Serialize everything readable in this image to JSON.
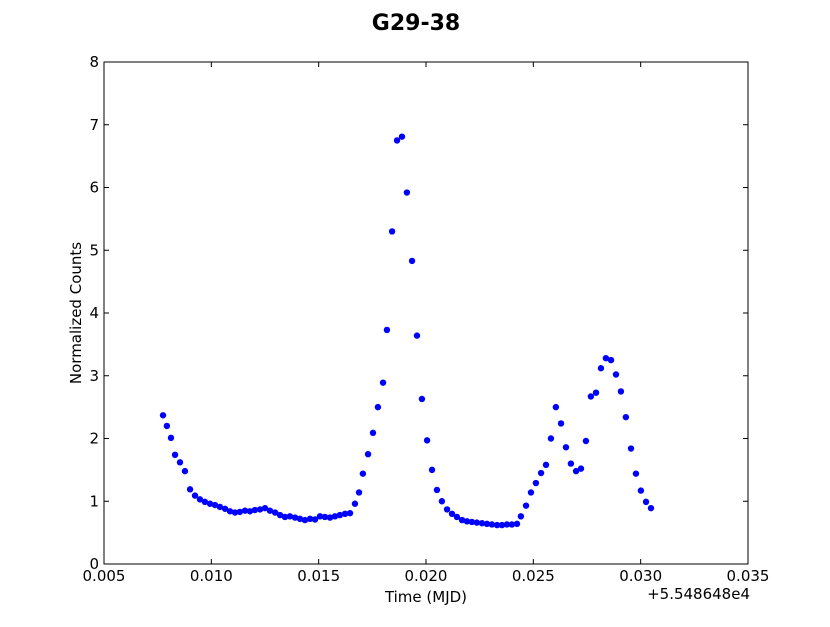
{
  "chart_data": {
    "type": "scatter",
    "title": "G29-38",
    "x_label": "Time (MJD)",
    "y_label": "Normalized Counts",
    "x_offset_text": "+5.548648e4",
    "xlim": [
      0.005,
      0.035
    ],
    "ylim": [
      0,
      8
    ],
    "xticks": [
      0.005,
      {
        "value": 0.01,
        "label": "0.010"
      },
      0.015,
      {
        "value": 0.02,
        "label": "0.020"
      },
      0.025,
      {
        "value": 0.03,
        "label": "0.030"
      },
      0.035
    ],
    "yticks": [
      0,
      1,
      2,
      3,
      4,
      5,
      6,
      7,
      8
    ],
    "grid": false,
    "series": [
      {
        "color": "#0000ff",
        "x": [
          0.00775,
          0.00793,
          0.00812,
          0.00831,
          0.00854,
          0.00877,
          0.00901,
          0.00924,
          0.00947,
          0.0097,
          0.00994,
          0.01017,
          0.0104,
          0.01064,
          0.01087,
          0.0111,
          0.01133,
          0.01157,
          0.0118,
          0.01203,
          0.01227,
          0.0125,
          0.01273,
          0.01297,
          0.0132,
          0.01343,
          0.01366,
          0.0139,
          0.01413,
          0.01436,
          0.0146,
          0.01483,
          0.01506,
          0.01529,
          0.01553,
          0.01576,
          0.01599,
          0.01623,
          0.01646,
          0.01669,
          0.01688,
          0.01706,
          0.0173,
          0.01753,
          0.01776,
          0.018,
          0.01818,
          0.01842,
          0.01865,
          0.01888,
          0.01911,
          0.01935,
          0.01958,
          0.01981,
          0.02005,
          0.02028,
          0.02051,
          0.02074,
          0.02098,
          0.02121,
          0.02144,
          0.02168,
          0.02191,
          0.02214,
          0.02237,
          0.02261,
          0.02284,
          0.02307,
          0.02331,
          0.02354,
          0.02377,
          0.024,
          0.02424,
          0.02442,
          0.02466,
          0.02489,
          0.02512,
          0.02536,
          0.02559,
          0.02582,
          0.02605,
          0.02629,
          0.02652,
          0.02675,
          0.02699,
          0.02722,
          0.02745,
          0.02768,
          0.02792,
          0.02815,
          0.02838,
          0.02862,
          0.02885,
          0.02908,
          0.02931,
          0.02955,
          0.02978,
          0.03001,
          0.03025,
          0.03048
        ],
        "values": [
          2.37,
          2.2,
          2.01,
          1.74,
          1.62,
          1.48,
          1.19,
          1.09,
          1.03,
          0.99,
          0.96,
          0.94,
          0.91,
          0.88,
          0.84,
          0.82,
          0.83,
          0.85,
          0.84,
          0.86,
          0.87,
          0.89,
          0.85,
          0.82,
          0.78,
          0.75,
          0.76,
          0.74,
          0.72,
          0.7,
          0.72,
          0.71,
          0.76,
          0.75,
          0.74,
          0.76,
          0.78,
          0.8,
          0.81,
          0.96,
          1.14,
          1.44,
          1.75,
          2.09,
          2.5,
          2.89,
          3.73,
          5.3,
          6.75,
          6.81,
          5.92,
          4.83,
          3.64,
          2.63,
          1.97,
          1.5,
          1.18,
          1.0,
          0.87,
          0.8,
          0.75,
          0.7,
          0.68,
          0.67,
          0.66,
          0.65,
          0.64,
          0.63,
          0.62,
          0.62,
          0.63,
          0.63,
          0.64,
          0.76,
          0.93,
          1.14,
          1.29,
          1.45,
          1.58,
          2.0,
          2.5,
          2.24,
          1.86,
          1.6,
          1.48,
          1.52,
          1.96,
          2.67,
          2.73,
          3.12,
          3.28,
          3.25,
          3.02,
          2.75,
          2.34,
          1.84,
          1.44,
          1.17,
          0.99,
          0.89
        ]
      }
    ]
  }
}
